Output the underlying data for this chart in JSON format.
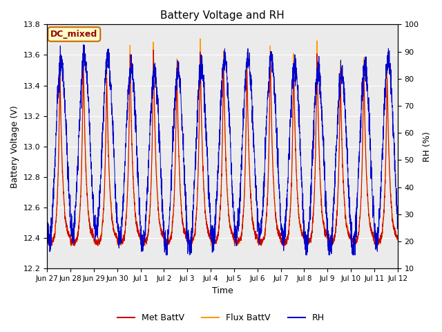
{
  "title": "Battery Voltage and RH",
  "xlabel": "Time",
  "ylabel_left": "Battery Voltage (V)",
  "ylabel_right": "RH (%)",
  "annotation": "DC_mixed",
  "ylim_left": [
    12.2,
    13.8
  ],
  "ylim_right": [
    10,
    100
  ],
  "yticks_left": [
    12.2,
    12.4,
    12.6,
    12.8,
    13.0,
    13.2,
    13.4,
    13.6,
    13.8
  ],
  "yticks_right": [
    10,
    20,
    30,
    40,
    50,
    60,
    70,
    80,
    90,
    100
  ],
  "xtick_labels": [
    "Jun 27",
    "Jun 28",
    "Jun 29",
    "Jun 30",
    "Jul 1",
    "Jul 2",
    "Jul 3",
    "Jul 4",
    "Jul 5",
    "Jul 6",
    "Jul 7",
    "Jul 8",
    "Jul 9",
    "Jul 10",
    "Jul 11",
    "Jul 12"
  ],
  "color_met": "#cc0000",
  "color_flux": "#ff9900",
  "color_rh": "#0000cc",
  "background_color": "#ebebeb",
  "grid_color": "#ffffff",
  "legend_labels": [
    "Met BattV",
    "Flux BattV",
    "RH"
  ],
  "annotation_facecolor": "#ffffcc",
  "annotation_edgecolor": "#cc6600",
  "annotation_textcolor": "#990000"
}
